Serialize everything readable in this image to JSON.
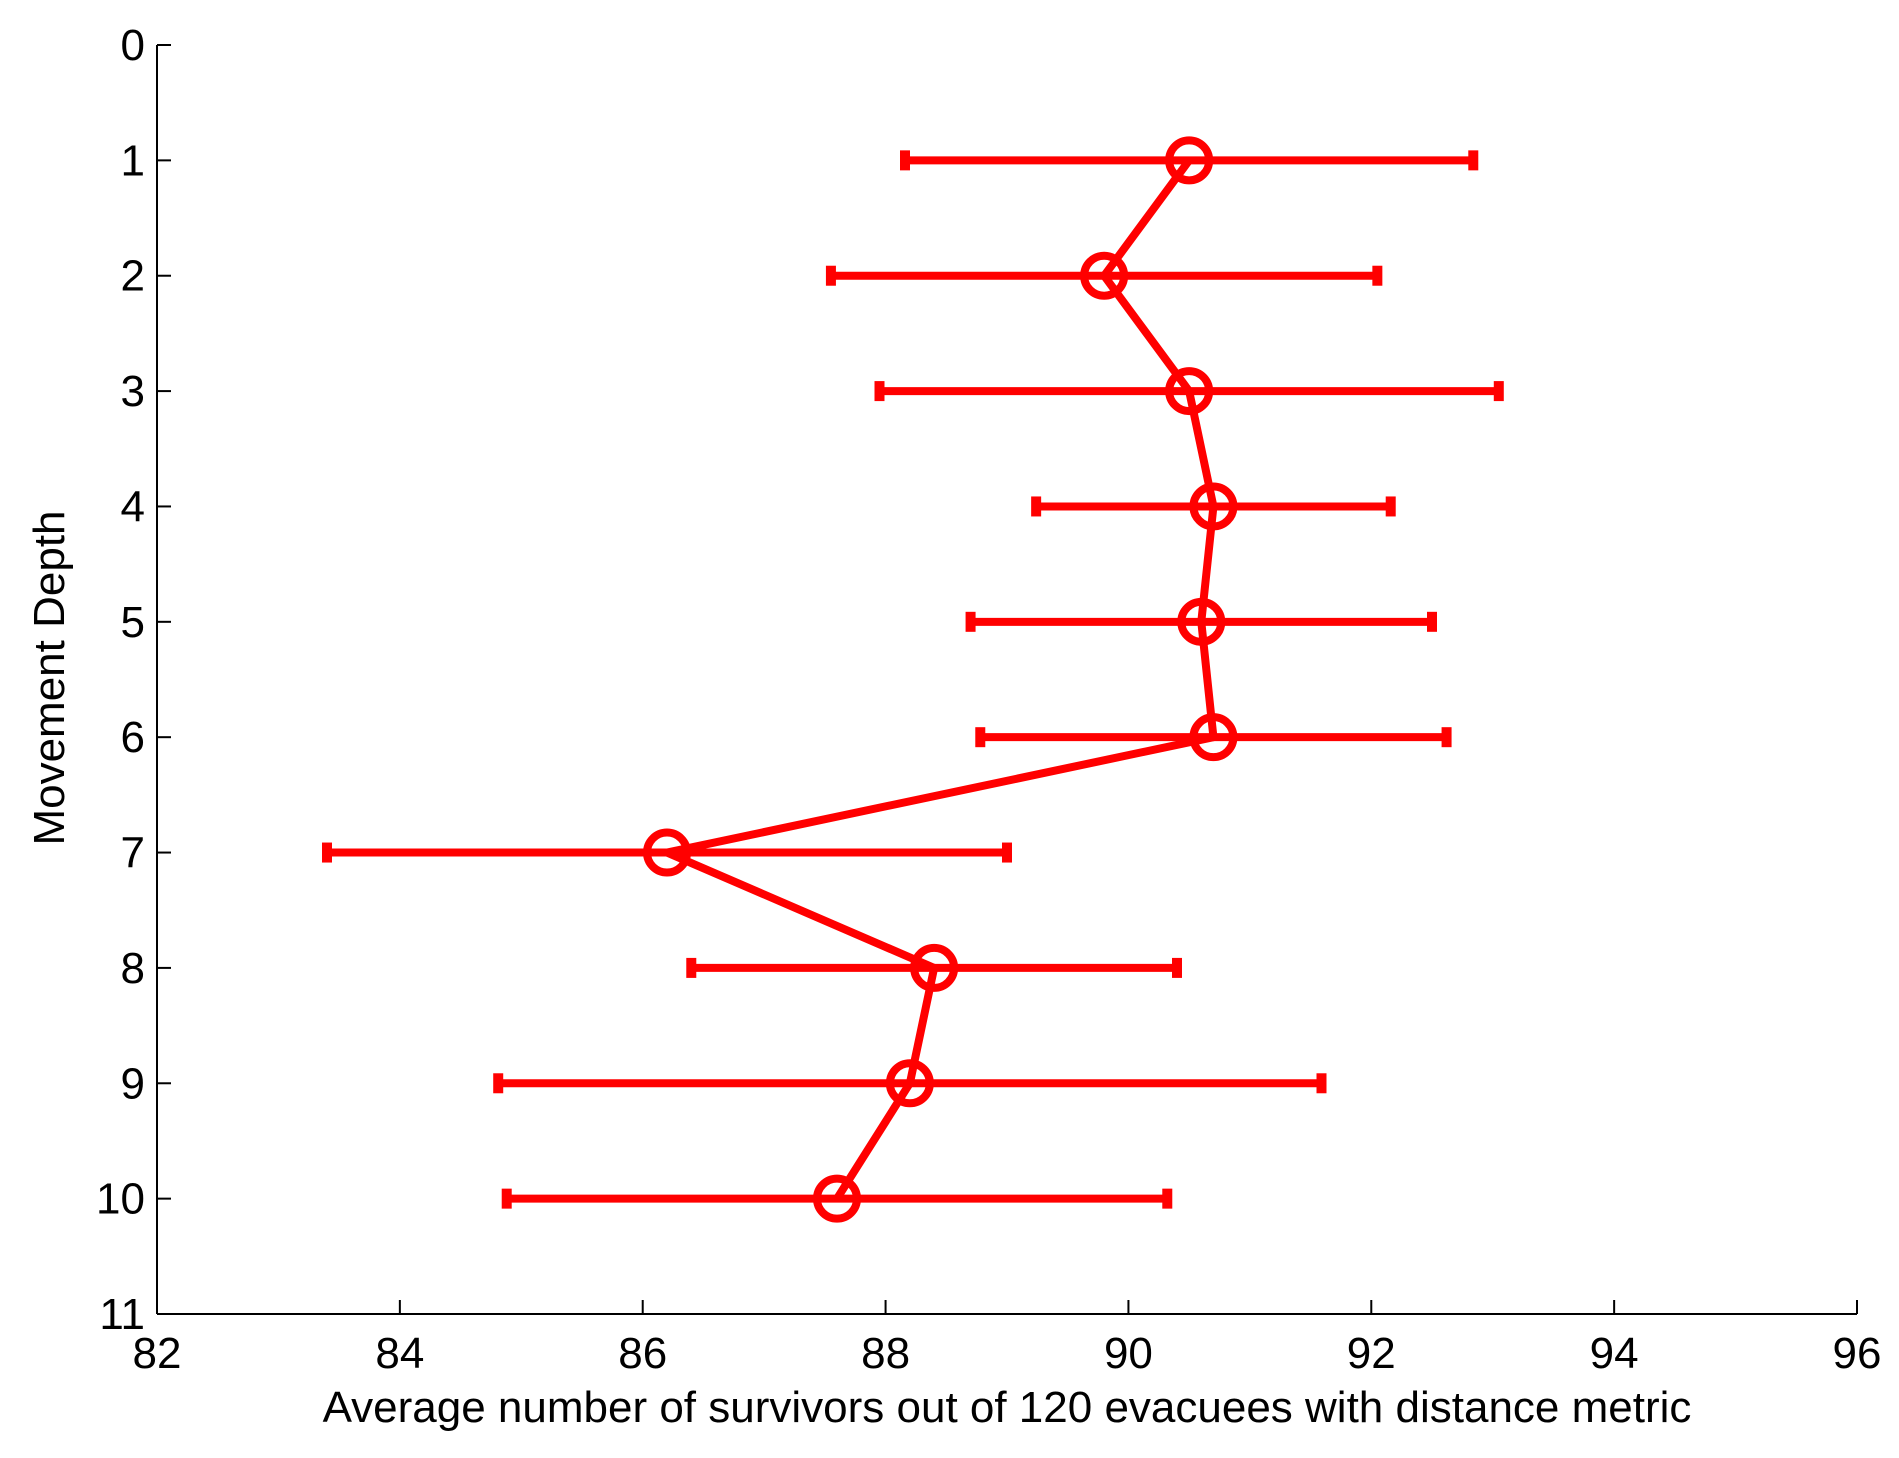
{
  "chart_data": {
    "type": "errorbar",
    "xlabel": "Average number of survivors out of 120 evacuees with distance metric",
    "ylabel": "Movement Depth",
    "series": [
      {
        "color": "#ff0000",
        "y": [
          1,
          2,
          3,
          4,
          5,
          6,
          7,
          8,
          9,
          10
        ],
        "values": [
          90.5,
          89.8,
          90.5,
          90.7,
          90.6,
          90.7,
          86.2,
          88.4,
          88.2,
          87.6
        ],
        "errors": [
          2.34,
          2.25,
          2.55,
          1.46,
          1.9,
          1.92,
          2.8,
          2.0,
          3.39,
          2.72
        ]
      }
    ],
    "xlim": [
      82,
      96
    ],
    "xticks": [
      82,
      84,
      86,
      88,
      90,
      92,
      94,
      96
    ],
    "ylim": [
      0,
      11
    ],
    "yticks": [
      0,
      1,
      2,
      3,
      4,
      5,
      6,
      7,
      8,
      9,
      10,
      11
    ],
    "y_inverted": true
  }
}
